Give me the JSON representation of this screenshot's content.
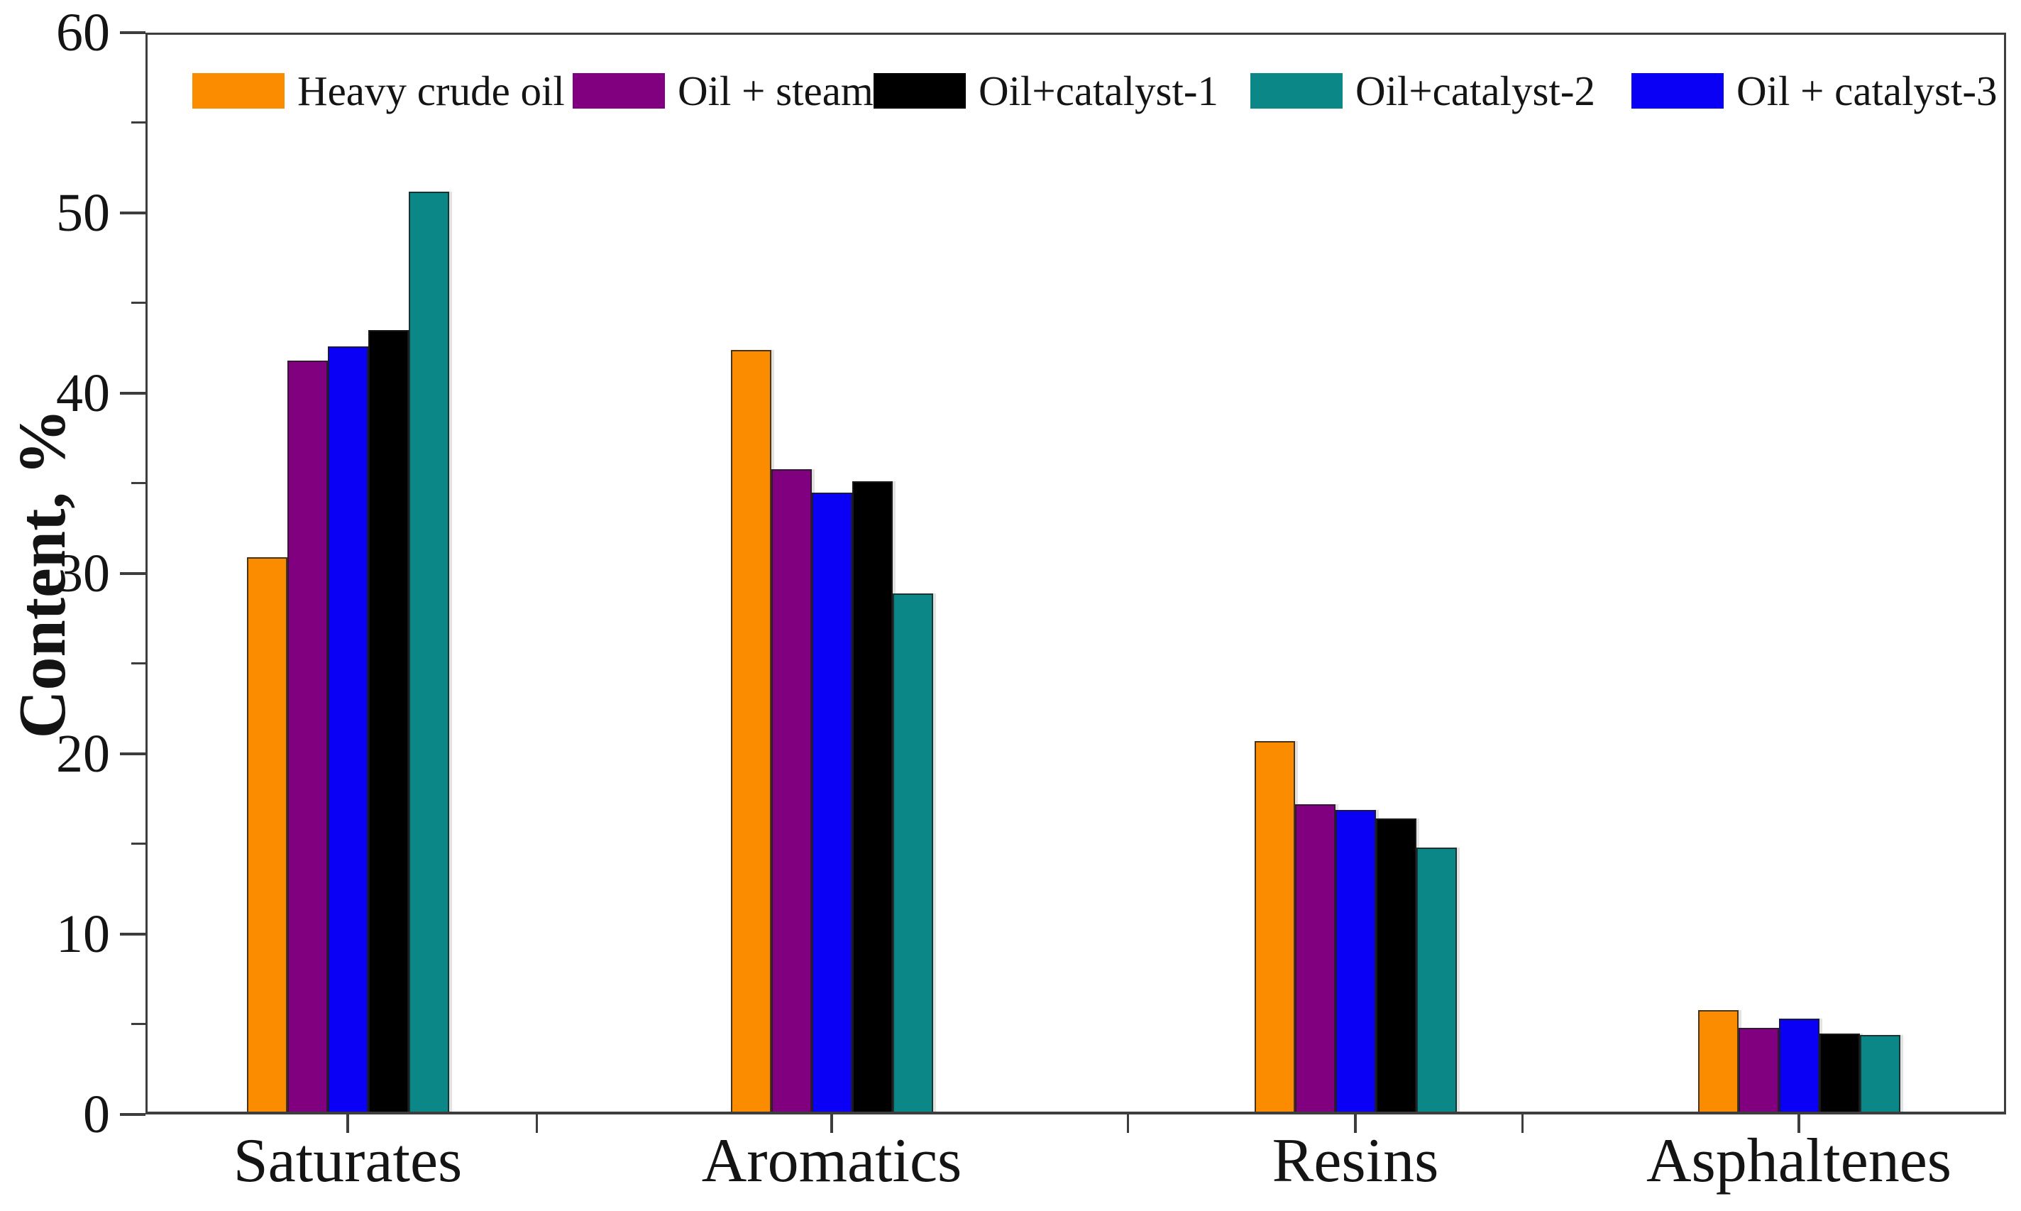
{
  "chart_data": {
    "type": "bar",
    "title": "",
    "ylabel": "Content, %",
    "xlabel": "",
    "ylim": [
      0,
      60
    ],
    "yticks": [
      0,
      10,
      20,
      30,
      40,
      50,
      60
    ],
    "ytick_minor_interval": 5,
    "grid": false,
    "legend_position": "top-inside",
    "categories": [
      "Saturates",
      "Aromatics",
      "Resins",
      "Asphaltenes"
    ],
    "series": [
      {
        "name": "Heavy crude oil",
        "color": "#FB8C00",
        "values": [
          30.9,
          42.4,
          20.7,
          5.8
        ]
      },
      {
        "name": "Oil + steam",
        "color": "#800080",
        "values": [
          41.8,
          35.8,
          17.2,
          4.8
        ]
      },
      {
        "name": "Oil+catalyst-1",
        "color": "#000000",
        "values": [
          43.5,
          35.1,
          16.4,
          4.5
        ]
      },
      {
        "name": "Oil+catalyst-2",
        "color": "#0B8787",
        "values": [
          51.2,
          28.9,
          14.8,
          4.4
        ]
      },
      {
        "name": "Oil + catalyst-3",
        "color": "#0A00F5",
        "values": [
          42.6,
          34.5,
          16.9,
          5.3
        ]
      }
    ],
    "bar_order_within_group": [
      "Heavy crude oil",
      "Oil + steam",
      "Oil + catalyst-3",
      "Oil+catalyst-1",
      "Oil+catalyst-2"
    ],
    "axis_color": "#3d3d3d"
  }
}
